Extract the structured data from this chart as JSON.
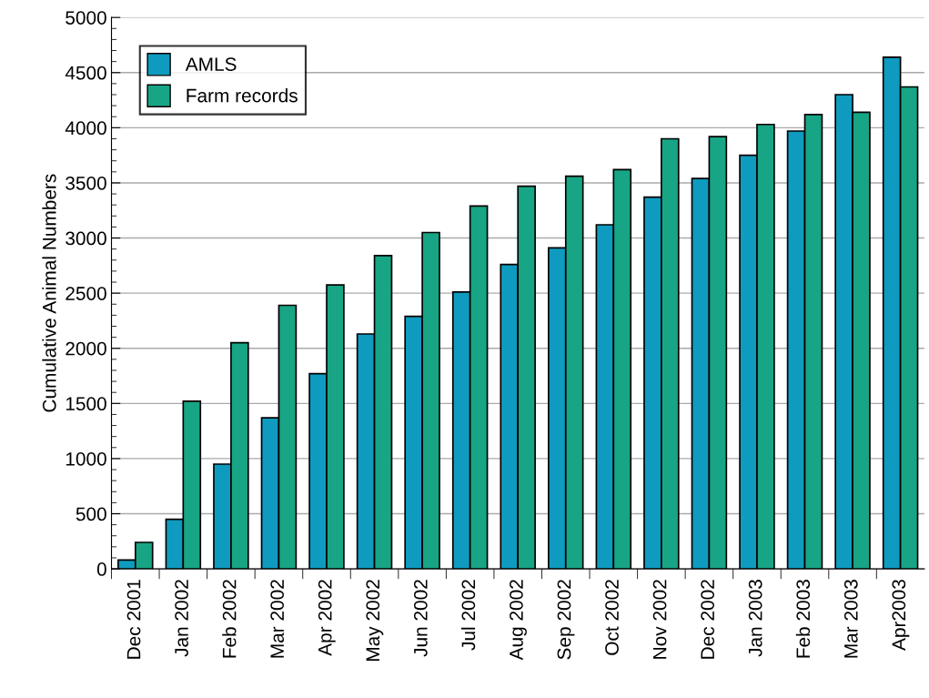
{
  "chart_data": {
    "type": "bar",
    "ylabel": "Cumulative Animal Numbers",
    "categories": [
      "Dec 2001",
      "Jan 2002",
      "Feb 2002",
      "Mar 2002",
      "Apr 2002",
      "May 2002",
      "Jun 2002",
      "Jul 2002",
      "Aug 2002",
      "Sep 2002",
      "Oct 2002",
      "Nov 2002",
      "Dec 2002",
      "Jan 2003",
      "Feb 2003",
      "Mar 2003",
      "Apr2003"
    ],
    "series": [
      {
        "name": "AMLS",
        "color": "#0f9bbf",
        "values": [
          80,
          450,
          950,
          1370,
          1770,
          2130,
          2290,
          2510,
          2760,
          2910,
          3120,
          3370,
          3540,
          3750,
          3970,
          4300,
          4640
        ]
      },
      {
        "name": "Farm records",
        "color": "#17a585",
        "values": [
          240,
          1520,
          2050,
          2390,
          2575,
          2840,
          3050,
          3290,
          3470,
          3560,
          3620,
          3900,
          3920,
          4030,
          4120,
          4140,
          4370
        ]
      }
    ],
    "ylim": [
      0,
      5000
    ],
    "yticks": [
      0,
      500,
      1000,
      1500,
      2000,
      2500,
      3000,
      3500,
      4000,
      4500,
      5000
    ],
    "grid": "y",
    "legend": "top left"
  }
}
